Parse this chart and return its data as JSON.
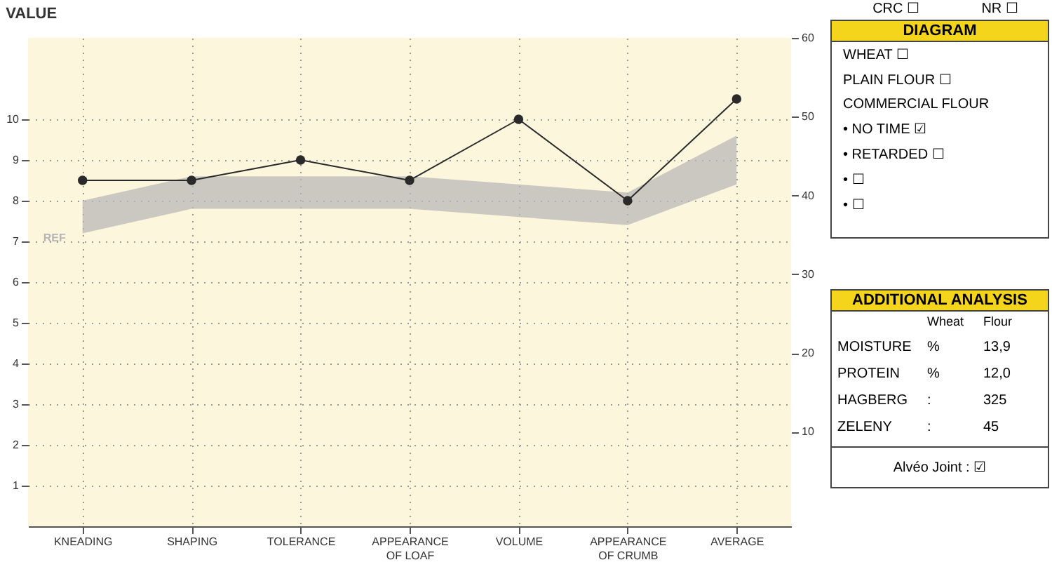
{
  "chart_data": [
    {
      "type": "line",
      "title": "VALUE",
      "categories": [
        "KNEADING",
        "SHAPING",
        "TOLERANCE",
        "APPEARANCE OF LOAF",
        "VOLUME",
        "APPEARANCE OF CRUMB",
        "AVERAGE"
      ],
      "series": [
        {
          "color": "#2a2a2a",
          "values": [
            8.5,
            8.5,
            9,
            8.5,
            10,
            8,
            10.5
          ]
        },
        {
          "name": "REF",
          "type": "area",
          "color": "#b5b5b5",
          "values": [
            null,
            null,
            null,
            null,
            null,
            null,
            null
          ],
          "lower": [
            7.2,
            7.8,
            7.8,
            7.8,
            7.6,
            7.4,
            8.4
          ],
          "upper": [
            8.0,
            8.6,
            8.6,
            8.6,
            8.4,
            8.2,
            9.6
          ]
        }
      ],
      "ylim": [
        0,
        12
      ],
      "yticks": [
        1,
        2,
        3,
        4,
        5,
        6,
        7,
        8,
        9,
        10
      ],
      "y2lim": [
        -2,
        60
      ],
      "y2ticks": [
        10,
        20,
        30,
        40,
        50,
        60
      ],
      "grid": true,
      "marker": "circle",
      "annotations": [
        "CRC ☐",
        "NR ☐"
      ]
    },
    {
      "type": "other",
      "title": "DIAGRAM",
      "annotations": [
        "WHEAT ☐",
        "PLAIN FLOUR ☐",
        "COMMERCIAL FLOUR",
        "• NO TIME ☑",
        "• RETARDED ☐",
        "• ☐",
        "• ☐"
      ]
    },
    {
      "type": "other",
      "title": "ADDITIONAL ANALYSIS",
      "annotations": [
        "Wheat",
        "Flour",
        "MOISTURE",
        "%",
        "13,9",
        "PROTEIN",
        "%",
        "12,0",
        "HAGBERG",
        ":",
        "325",
        "ZELENY",
        ":",
        "45",
        "Alvéo Joint : ☑"
      ]
    }
  ]
}
